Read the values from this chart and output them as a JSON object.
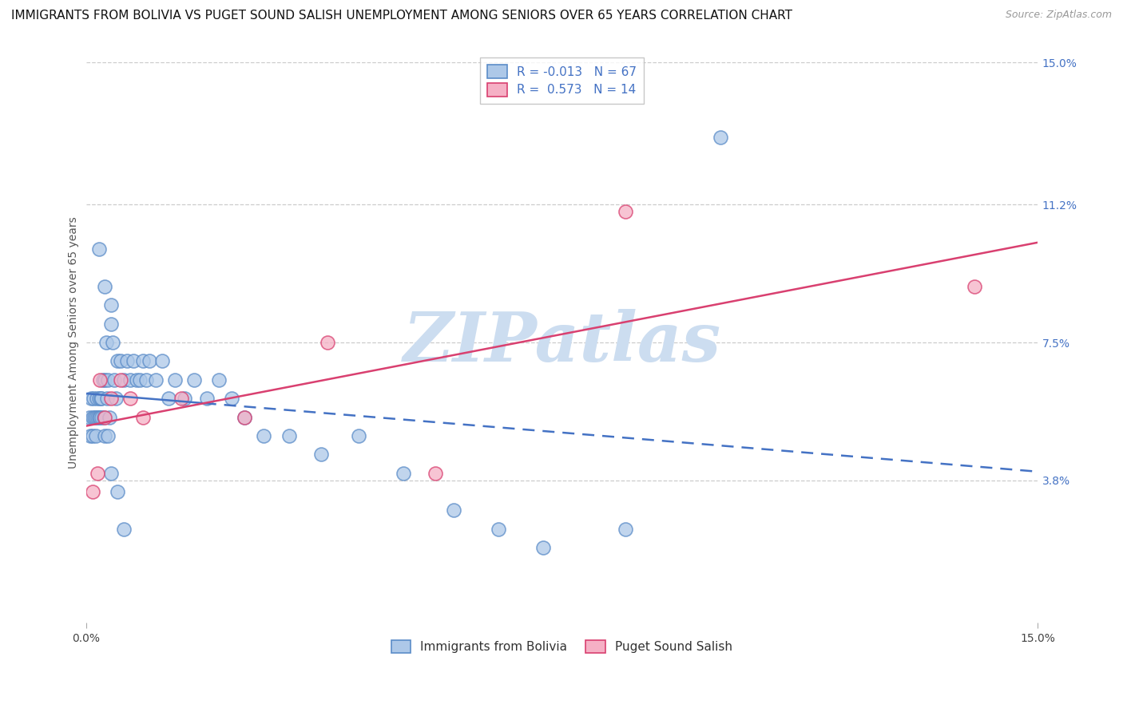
{
  "title": "IMMIGRANTS FROM BOLIVIA VS PUGET SOUND SALISH UNEMPLOYMENT AMONG SENIORS OVER 65 YEARS CORRELATION CHART",
  "source": "Source: ZipAtlas.com",
  "ylabel": "Unemployment Among Seniors over 65 years",
  "xmin": 0.0,
  "xmax": 15.0,
  "ymin": 0.0,
  "ymax": 15.0,
  "right_yticks": [
    3.8,
    7.5,
    11.2,
    15.0
  ],
  "bolivia_R": -0.013,
  "bolivia_N": 67,
  "salish_R": 0.573,
  "salish_N": 14,
  "bolivia_color": "#adc8e8",
  "salish_color": "#f5b0c5",
  "bolivia_edge_color": "#5b8cc8",
  "salish_edge_color": "#d94070",
  "bolivia_line_color": "#4472c4",
  "salish_line_color": "#d94070",
  "background_color": "#ffffff",
  "grid_color": "#cccccc",
  "title_fontsize": 11,
  "label_fontsize": 10,
  "tick_fontsize": 10,
  "legend_fontsize": 11,
  "bolivia_x": [
    0.05,
    0.07,
    0.08,
    0.1,
    0.1,
    0.12,
    0.13,
    0.15,
    0.15,
    0.17,
    0.18,
    0.2,
    0.2,
    0.22,
    0.23,
    0.25,
    0.25,
    0.27,
    0.28,
    0.3,
    0.3,
    0.32,
    0.33,
    0.35,
    0.35,
    0.37,
    0.4,
    0.4,
    0.42,
    0.45,
    0.47,
    0.5,
    0.55,
    0.6,
    0.65,
    0.7,
    0.75,
    0.8,
    0.85,
    0.9,
    0.95,
    1.0,
    1.1,
    1.2,
    1.3,
    1.4,
    1.55,
    1.7,
    1.9,
    2.1,
    2.3,
    2.5,
    2.8,
    3.2,
    3.7,
    4.3,
    5.0,
    5.8,
    6.5,
    7.2,
    8.5,
    10.0,
    0.2,
    0.3,
    0.4,
    0.5,
    0.6
  ],
  "bolivia_y": [
    5.5,
    5.0,
    6.0,
    5.5,
    5.0,
    6.0,
    5.5,
    5.5,
    5.0,
    6.0,
    5.5,
    6.0,
    5.5,
    5.5,
    6.0,
    6.0,
    5.5,
    6.5,
    5.5,
    6.5,
    5.0,
    7.5,
    6.0,
    6.5,
    5.0,
    5.5,
    8.5,
    8.0,
    7.5,
    6.5,
    6.0,
    7.0,
    7.0,
    6.5,
    7.0,
    6.5,
    7.0,
    6.5,
    6.5,
    7.0,
    6.5,
    7.0,
    6.5,
    7.0,
    6.0,
    6.5,
    6.0,
    6.5,
    6.0,
    6.5,
    6.0,
    5.5,
    5.0,
    5.0,
    4.5,
    5.0,
    4.0,
    3.0,
    2.5,
    2.0,
    2.5,
    13.0,
    10.0,
    9.0,
    4.0,
    3.5,
    2.5
  ],
  "salish_x": [
    0.1,
    0.18,
    0.22,
    0.3,
    0.4,
    0.55,
    0.7,
    0.9,
    1.5,
    2.5,
    3.8,
    5.5,
    8.5,
    14.0
  ],
  "salish_y": [
    3.5,
    4.0,
    6.5,
    5.5,
    6.0,
    6.5,
    6.0,
    5.5,
    6.0,
    5.5,
    7.5,
    4.0,
    11.0,
    9.0
  ]
}
